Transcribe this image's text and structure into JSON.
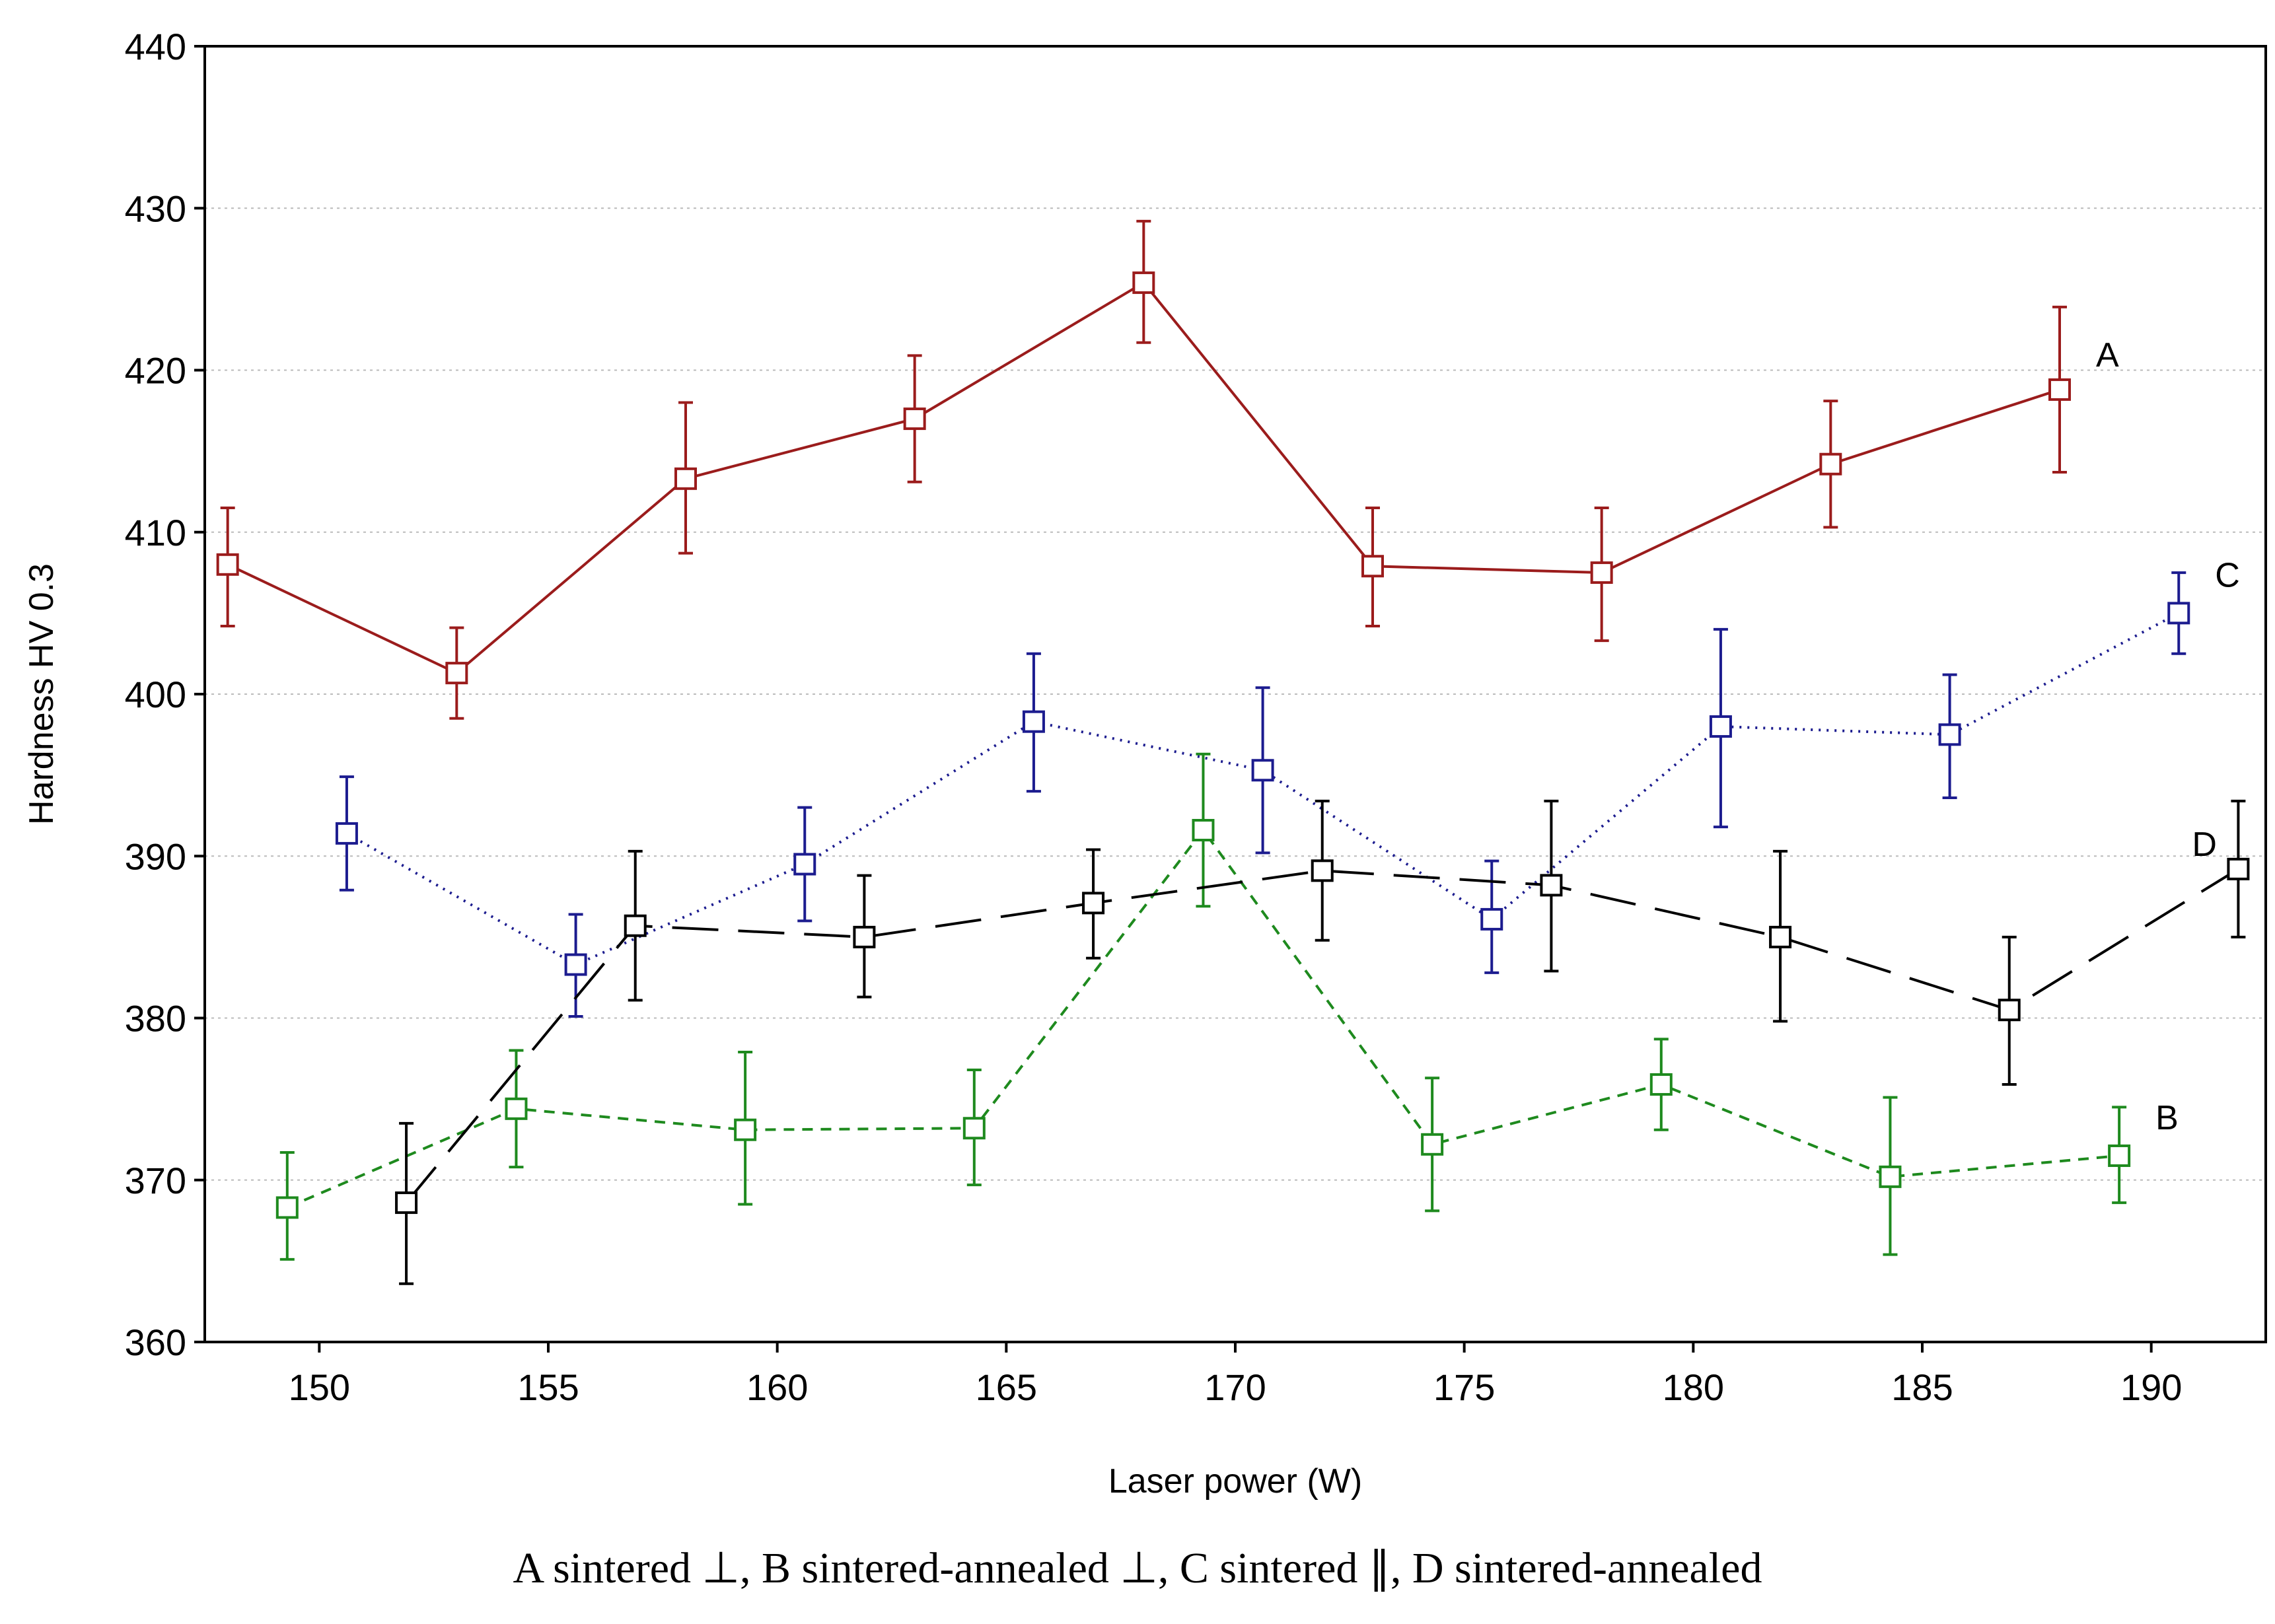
{
  "caption": "A sintered ⊥, B sintered-annealed ⊥, C sintered ∥, D sintered-annealed",
  "chart_data": {
    "type": "line",
    "title": "",
    "xlabel": "Laser power (W)",
    "ylabel": "Hardness HV 0.3",
    "xlim": [
      147.5,
      192.5
    ],
    "ylim": [
      360,
      440
    ],
    "xticks": [
      150,
      155,
      160,
      165,
      170,
      175,
      180,
      185,
      190
    ],
    "yticks": [
      360,
      370,
      380,
      390,
      400,
      410,
      420,
      430,
      440
    ],
    "grid": true,
    "series": [
      {
        "name": "A",
        "color": "#9b1c1c",
        "dash": "solid",
        "x": [
          148,
          153,
          158,
          163,
          168,
          173,
          178,
          183,
          188
        ],
        "y": [
          408,
          401.3,
          413.3,
          417,
          425.4,
          407.9,
          407.5,
          414.2,
          418.8
        ],
        "err_low": [
          404.2,
          398.5,
          408.7,
          413.1,
          421.7,
          404.2,
          403.3,
          410.3,
          413.7
        ],
        "err_high": [
          411.5,
          404.1,
          418,
          420.9,
          429.2,
          411.5,
          411.5,
          418.1,
          423.9
        ]
      },
      {
        "name": "B",
        "color": "#1e8a1e",
        "dash": "dashed",
        "x": [
          149.3,
          154.3,
          159.3,
          164.3,
          169.3,
          174.3,
          179.3,
          184.3,
          189.3
        ],
        "y": [
          368.3,
          374.4,
          373.1,
          373.2,
          391.6,
          372.2,
          375.9,
          370.2,
          371.5
        ],
        "err_low": [
          365.1,
          370.8,
          368.5,
          369.7,
          386.9,
          368.1,
          373.1,
          365.4,
          368.6
        ],
        "err_high": [
          371.7,
          378,
          377.9,
          376.8,
          396.3,
          376.3,
          378.7,
          375.1,
          374.5
        ]
      },
      {
        "name": "C",
        "color": "#1c1c8f",
        "dash": "dotted",
        "x": [
          150.6,
          155.6,
          160.6,
          165.6,
          170.6,
          175.6,
          180.6,
          185.6,
          190.6
        ],
        "y": [
          391.4,
          383.3,
          389.5,
          398.3,
          395.3,
          386.1,
          398,
          397.5,
          405
        ],
        "err_low": [
          387.9,
          380.1,
          386,
          394,
          390.2,
          382.8,
          391.8,
          393.6,
          402.5
        ],
        "err_high": [
          394.9,
          386.4,
          393,
          402.5,
          400.4,
          389.7,
          404,
          401.2,
          407.5
        ]
      },
      {
        "name": "D",
        "color": "#000000",
        "dash": "longdash",
        "x": [
          151.9,
          156.9,
          161.9,
          166.9,
          171.9,
          176.9,
          181.9,
          186.9,
          191.9
        ],
        "y": [
          368.6,
          385.7,
          385,
          387.1,
          389.1,
          388.2,
          385,
          380.5,
          389.2
        ],
        "err_low": [
          363.6,
          381.1,
          381.3,
          383.7,
          384.8,
          382.9,
          379.8,
          375.9,
          385
        ],
        "err_high": [
          373.5,
          390.3,
          388.8,
          390.4,
          393.4,
          393.4,
          390.3,
          385,
          393.4
        ]
      }
    ]
  }
}
